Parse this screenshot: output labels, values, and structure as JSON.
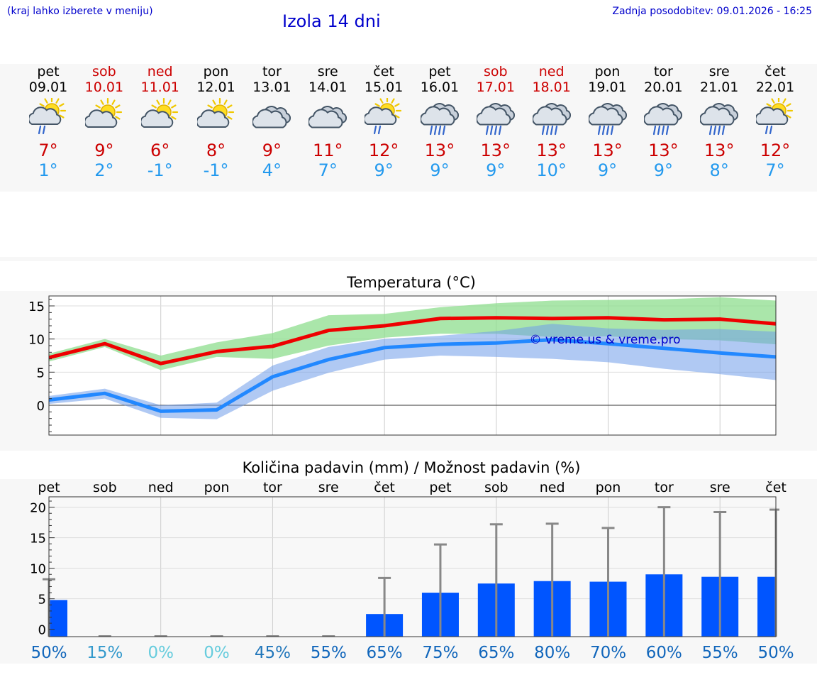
{
  "header": {
    "note": "(kraj lahko izberete v meniju)",
    "title": "Izola 14 dni",
    "updated": "Zadnja posodobitev: 09.01.2026 - 16:25"
  },
  "colors": {
    "max": "#cc0000",
    "min": "#2299ee",
    "bar": "#0055ff",
    "pct_dark": "#1166bb",
    "pct_light": "#66ccdd"
  },
  "days": [
    {
      "name": "pet",
      "date": "09.01",
      "weekend": false,
      "icon": "sun-cloud-rain-icon",
      "tmax": "7°",
      "tmin": "1°"
    },
    {
      "name": "sob",
      "date": "10.01",
      "weekend": true,
      "icon": "sun-cloud-icon",
      "tmax": "9°",
      "tmin": "2°"
    },
    {
      "name": "ned",
      "date": "11.01",
      "weekend": true,
      "icon": "sun-cloud-icon",
      "tmax": "6°",
      "tmin": "-1°"
    },
    {
      "name": "pon",
      "date": "12.01",
      "weekend": false,
      "icon": "sun-cloud-icon",
      "tmax": "8°",
      "tmin": "-1°"
    },
    {
      "name": "tor",
      "date": "13.01",
      "weekend": false,
      "icon": "cloudy-icon",
      "tmax": "9°",
      "tmin": "4°"
    },
    {
      "name": "sre",
      "date": "14.01",
      "weekend": false,
      "icon": "cloudy-icon",
      "tmax": "11°",
      "tmin": "7°"
    },
    {
      "name": "čet",
      "date": "15.01",
      "weekend": false,
      "icon": "sun-cloud-rain-icon",
      "tmax": "12°",
      "tmin": "9°"
    },
    {
      "name": "pet",
      "date": "16.01",
      "weekend": false,
      "icon": "cloud-rain-icon",
      "tmax": "13°",
      "tmin": "9°"
    },
    {
      "name": "sob",
      "date": "17.01",
      "weekend": true,
      "icon": "cloud-rain-icon",
      "tmax": "13°",
      "tmin": "9°"
    },
    {
      "name": "ned",
      "date": "18.01",
      "weekend": true,
      "icon": "cloud-rain-icon",
      "tmax": "13°",
      "tmin": "10°"
    },
    {
      "name": "pon",
      "date": "19.01",
      "weekend": false,
      "icon": "cloud-rain-icon",
      "tmax": "13°",
      "tmin": "9°"
    },
    {
      "name": "tor",
      "date": "20.01",
      "weekend": false,
      "icon": "cloud-rain-icon",
      "tmax": "13°",
      "tmin": "9°"
    },
    {
      "name": "sre",
      "date": "21.01",
      "weekend": false,
      "icon": "cloud-rain-icon",
      "tmax": "13°",
      "tmin": "8°"
    },
    {
      "name": "čet",
      "date": "22.01",
      "weekend": false,
      "icon": "sun-cloud-rain-icon",
      "tmax": "12°",
      "tmin": "7°"
    }
  ],
  "chart_data": [
    {
      "type": "line",
      "title": "Temperatura (°C)",
      "watermark": "© vreme.us & vreme.pro",
      "xlabel": "",
      "ylabel": "",
      "x": [
        0,
        1,
        2,
        3,
        4,
        5,
        6,
        7,
        8,
        9,
        10,
        11,
        12,
        13
      ],
      "ylim": [
        -4.5,
        16.5
      ],
      "yticks": [
        "15",
        "10",
        "5",
        "0"
      ],
      "series": [
        {
          "name": "max",
          "values": [
            7.2,
            9.3,
            6.3,
            8.1,
            8.9,
            11.3,
            12.0,
            13.1,
            13.2,
            13.1,
            13.2,
            12.9,
            13.0,
            12.3
          ],
          "band_low": [
            6.6,
            8.8,
            5.3,
            7.3,
            7.0,
            9.0,
            10.2,
            10.8,
            10.8,
            10.3,
            10.4,
            10.0,
            9.8,
            9.2
          ],
          "band_high": [
            7.8,
            10.0,
            7.5,
            9.5,
            10.9,
            13.6,
            13.8,
            14.8,
            15.4,
            15.8,
            15.9,
            16.0,
            16.3,
            15.8
          ]
        },
        {
          "name": "min",
          "values": [
            0.8,
            1.8,
            -0.9,
            -0.7,
            4.3,
            6.9,
            8.7,
            9.2,
            9.4,
            9.9,
            9.3,
            8.6,
            7.9,
            7.3
          ],
          "band_low": [
            0.2,
            1.0,
            -1.9,
            -2.1,
            2.2,
            4.9,
            6.9,
            7.5,
            7.3,
            7.0,
            6.5,
            5.5,
            4.7,
            3.8
          ],
          "band_high": [
            1.4,
            2.5,
            0.0,
            0.4,
            6.0,
            8.8,
            10.0,
            10.5,
            11.2,
            12.3,
            11.6,
            11.4,
            11.5,
            11.1
          ]
        }
      ]
    },
    {
      "type": "bar",
      "title": "Količina padavin (mm) / Možnost padavin (%)",
      "categories": [
        "pet",
        "sob",
        "ned",
        "pon",
        "tor",
        "sre",
        "čet",
        "pet",
        "sob",
        "ned",
        "pon",
        "tor",
        "sre",
        "čet"
      ],
      "ylim": [
        -1.2,
        21.7
      ],
      "yticks": [
        "20",
        "15",
        "10",
        "5",
        "0"
      ],
      "values": [
        4.8,
        0,
        0,
        0,
        0,
        0,
        2.5,
        6.0,
        7.5,
        7.9,
        7.8,
        9.0,
        8.6,
        8.6
      ],
      "max_values": [
        8.2,
        0,
        0,
        0,
        0,
        0,
        8.4,
        13.9,
        17.2,
        17.3,
        16.6,
        20.0,
        19.2,
        19.6
      ],
      "probability": [
        "50%",
        "15%",
        "0%",
        "0%",
        "45%",
        "55%",
        "65%",
        "75%",
        "65%",
        "80%",
        "70%",
        "60%",
        "55%",
        "50%"
      ]
    }
  ]
}
